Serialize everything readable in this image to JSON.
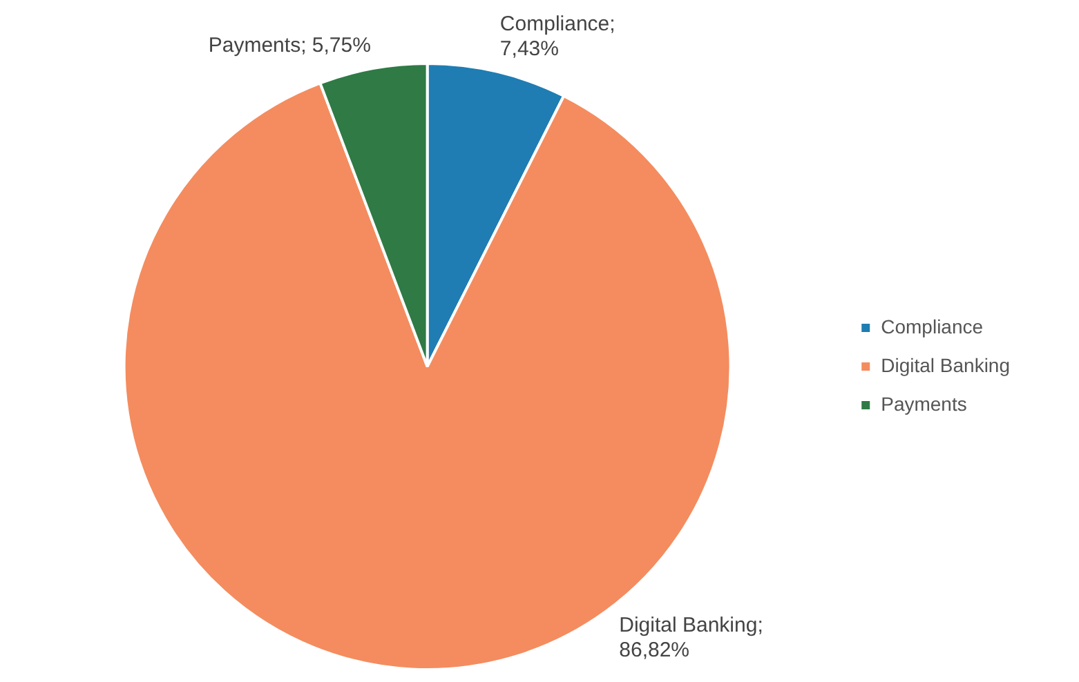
{
  "chart_data": {
    "type": "pie",
    "categories": [
      "Compliance",
      "Digital Banking",
      "Payments"
    ],
    "values": [
      7.43,
      86.82,
      5.75
    ],
    "colors": [
      "#1f7db3",
      "#f48c5f",
      "#2f7a45"
    ],
    "value_labels": [
      "Compliance;\n7,43%",
      "Digital Banking;\n86,82%",
      "Payments; 5,75%"
    ],
    "legend": "right"
  }
}
